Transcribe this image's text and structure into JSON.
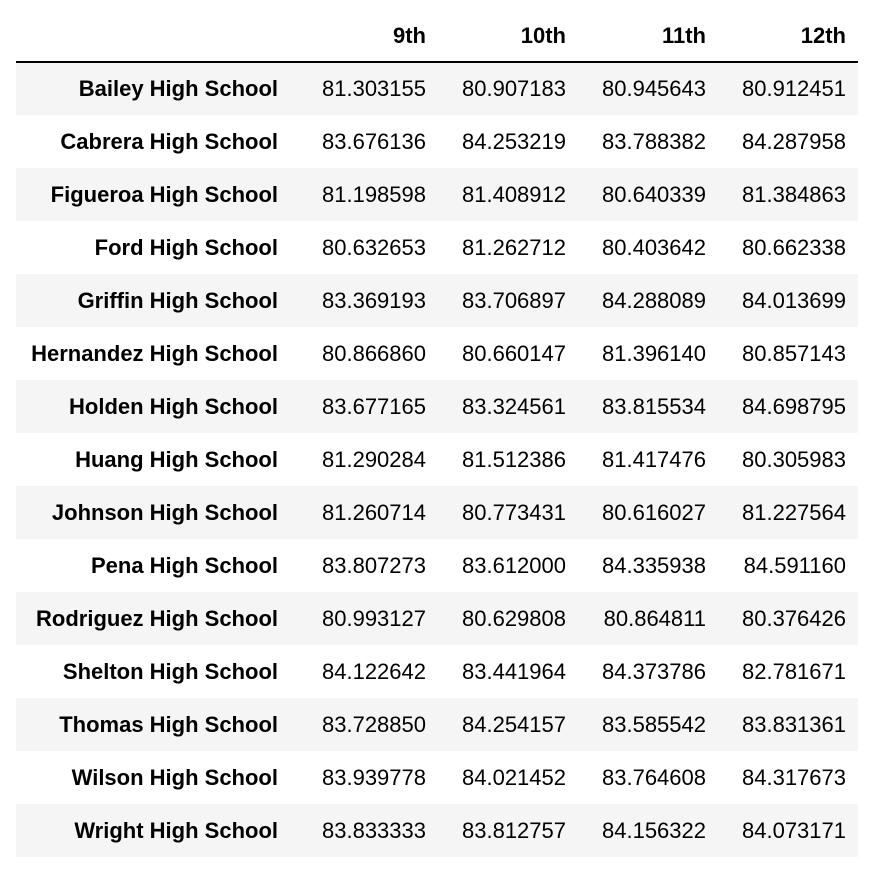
{
  "table": {
    "index_header": "",
    "columns": [
      "9th",
      "10th",
      "11th",
      "12th"
    ],
    "rows": [
      {
        "school": "Bailey High School",
        "values": [
          "81.303155",
          "80.907183",
          "80.945643",
          "80.912451"
        ]
      },
      {
        "school": "Cabrera High School",
        "values": [
          "83.676136",
          "84.253219",
          "83.788382",
          "84.287958"
        ]
      },
      {
        "school": "Figueroa High School",
        "values": [
          "81.198598",
          "81.408912",
          "80.640339",
          "81.384863"
        ]
      },
      {
        "school": "Ford High School",
        "values": [
          "80.632653",
          "81.262712",
          "80.403642",
          "80.662338"
        ]
      },
      {
        "school": "Griffin High School",
        "values": [
          "83.369193",
          "83.706897",
          "84.288089",
          "84.013699"
        ]
      },
      {
        "school": "Hernandez High School",
        "values": [
          "80.866860",
          "80.660147",
          "81.396140",
          "80.857143"
        ]
      },
      {
        "school": "Holden High School",
        "values": [
          "83.677165",
          "83.324561",
          "83.815534",
          "84.698795"
        ]
      },
      {
        "school": "Huang High School",
        "values": [
          "81.290284",
          "81.512386",
          "81.417476",
          "80.305983"
        ]
      },
      {
        "school": "Johnson High School",
        "values": [
          "81.260714",
          "80.773431",
          "80.616027",
          "81.227564"
        ]
      },
      {
        "school": "Pena High School",
        "values": [
          "83.807273",
          "83.612000",
          "84.335938",
          "84.591160"
        ]
      },
      {
        "school": "Rodriguez High School",
        "values": [
          "80.993127",
          "80.629808",
          "80.864811",
          "80.376426"
        ]
      },
      {
        "school": "Shelton High School",
        "values": [
          "84.122642",
          "83.441964",
          "84.373786",
          "82.781671"
        ]
      },
      {
        "school": "Thomas High School",
        "values": [
          "83.728850",
          "84.254157",
          "83.585542",
          "83.831361"
        ]
      },
      {
        "school": "Wilson High School",
        "values": [
          "83.939778",
          "84.021452",
          "83.764608",
          "84.317673"
        ]
      },
      {
        "school": "Wright High School",
        "values": [
          "83.833333",
          "83.812757",
          "84.156322",
          "84.073171"
        ]
      }
    ]
  }
}
